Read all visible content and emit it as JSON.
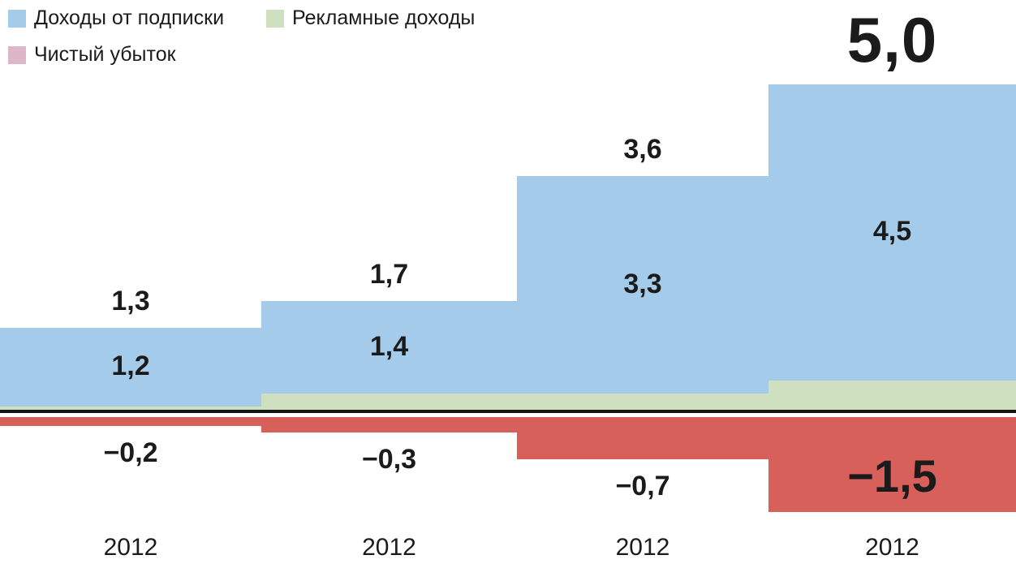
{
  "legend": {
    "items": [
      {
        "label": "Доходы от подписки",
        "color": "#a4cbe9"
      },
      {
        "label": "Рекламные доходы",
        "color": "#cfe0c0"
      },
      {
        "label": "Чистый убыток",
        "color": "#ddb7c8"
      }
    ]
  },
  "chart_data": {
    "type": "bar",
    "stacked": true,
    "grid": false,
    "legend_position": "top-left",
    "baseline": 0,
    "axis_line_color": "#141414",
    "x_tick_labels": [
      "2012",
      "2012",
      "2012",
      "2012"
    ],
    "series": [
      {
        "name": "Доходы от подписки",
        "color": "#a4cbe9",
        "values": [
          1.2,
          1.4,
          3.3,
          4.5
        ],
        "labels": [
          "1,2",
          "1,4",
          "3,3",
          "4,5"
        ]
      },
      {
        "name": "Рекламные доходы",
        "color": "#cfe0c0",
        "values": [
          0.1,
          0.3,
          0.3,
          0.5
        ]
      },
      {
        "name": "Чистый убыток",
        "color": "#d8605a",
        "legend_color": "#ddb7c8",
        "values": [
          -0.2,
          -0.3,
          -0.7,
          -1.5
        ],
        "labels": [
          "−0,2",
          "−0,3",
          "−0,7",
          "−1,5"
        ]
      }
    ],
    "total_labels": [
      "1,3",
      "1,7",
      "3,6",
      "5,0"
    ]
  }
}
